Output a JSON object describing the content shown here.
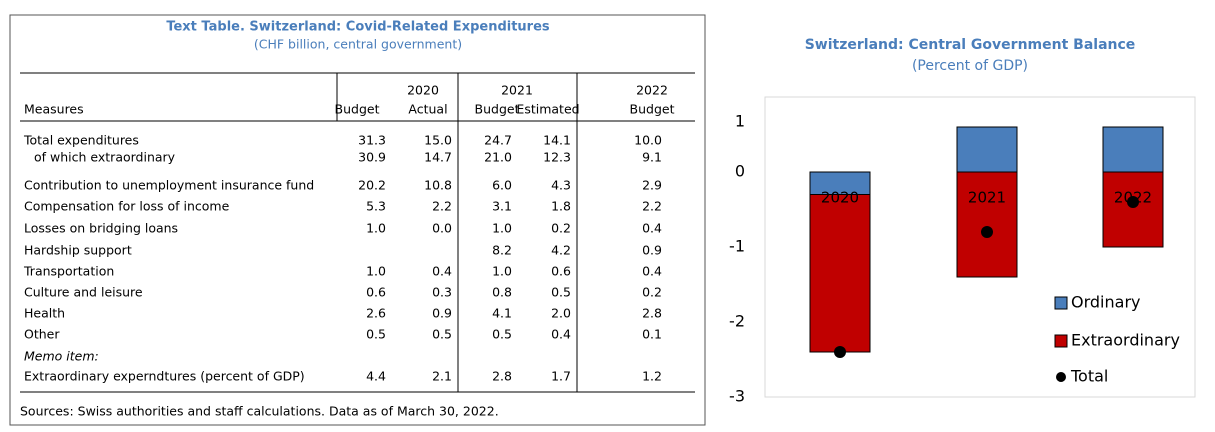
{
  "table": {
    "title": "Text Table. Switzerland: Covid-Related Expenditures",
    "subtitle": "(CHF billion, central government)",
    "years": [
      "2020",
      "2021",
      "2022"
    ],
    "columns": [
      "Measures",
      "Budget",
      "Actual",
      "Budget",
      "Estimated",
      "Budget"
    ],
    "rows": [
      [
        "Total expenditures",
        "31.3",
        "15.0",
        "24.7",
        "14.1",
        "10.0"
      ],
      [
        "of which extraordinary",
        "30.9",
        "14.7",
        "21.0",
        "12.3",
        "9.1"
      ],
      [
        "Contribution to unemployment insurance fund",
        "20.2",
        "10.8",
        "6.0",
        "4.3",
        "2.9"
      ],
      [
        "Compensation for loss of income",
        "5.3",
        "2.2",
        "3.1",
        "1.8",
        "2.2"
      ],
      [
        "Losses on bridging loans",
        "1.0",
        "0.0",
        "1.0",
        "0.2",
        "0.4"
      ],
      [
        "Hardship support",
        null,
        null,
        "8.2",
        "4.2",
        "0.9"
      ],
      [
        "Transportation",
        "1.0",
        "0.4",
        "1.0",
        "0.6",
        "0.4"
      ],
      [
        "Culture and leisure",
        "0.6",
        "0.3",
        "0.8",
        "0.5",
        "0.2"
      ],
      [
        "Health",
        "2.6",
        "0.9",
        "4.1",
        "2.0",
        "2.8"
      ],
      [
        "Other",
        "0.5",
        "0.5",
        "0.5",
        "0.4",
        "0.1"
      ]
    ],
    "memo": "Memo item:",
    "memo_rows": [
      [
        "Extraordinary experndtures (percent of GDP)",
        "4.4",
        "2.1",
        "2.8",
        "1.7",
        "1.2"
      ]
    ],
    "source": "Sources: Swiss authorities and staff calculations. Data as of March 30, 2022."
  },
  "chart_data": {
    "type": "bar",
    "stacked": true,
    "title": "Switzerland: Central Government Balance",
    "subtitle": "(Percent of GDP)",
    "categories": [
      "2020",
      "2021",
      "2022"
    ],
    "series": [
      {
        "name": "Ordinary",
        "color": "#4a7ebb",
        "values": [
          -0.3,
          0.6,
          0.6
        ]
      },
      {
        "name": "Extraordinary",
        "color": "#c00000",
        "values": [
          -2.1,
          -1.4,
          -1.0
        ]
      },
      {
        "name": "Total",
        "type": "scatter",
        "color": "#000000",
        "values": [
          -2.4,
          -0.8,
          -0.4
        ]
      }
    ],
    "ylim": [
      -3,
      1
    ],
    "yticks": [
      -3,
      -2,
      -1,
      0,
      1
    ],
    "grid": false,
    "legend": "lower right"
  }
}
